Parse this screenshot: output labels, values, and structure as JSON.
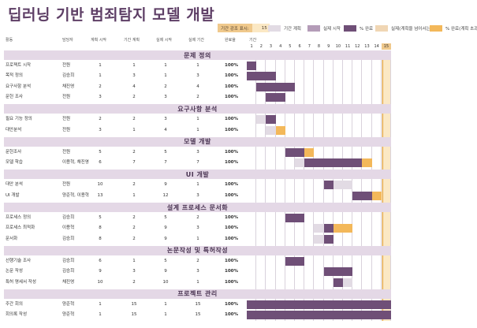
{
  "title": "딥러닝 기반 범죄탐지 모델 개발",
  "period_highlight": {
    "label": "기간 강조 표시:",
    "value": "15"
  },
  "legend": [
    {
      "label": "기간 계획",
      "color": "#e2dbe4",
      "icon": "legend-plan-swatch"
    },
    {
      "label": "실제 시작",
      "color": "#b49cb8",
      "icon": "legend-actual-swatch"
    },
    {
      "label": "% 완료",
      "color": "#6f4f77",
      "icon": "legend-complete-swatch"
    },
    {
      "label": "실제(계획을 넘어서는)",
      "color": "#f0d6b4",
      "icon": "legend-beyond-swatch"
    },
    {
      "label": "% 완료(계획 초과)",
      "color": "#f3b85a",
      "icon": "legend-complete-over-swatch"
    }
  ],
  "headers": {
    "activity": "활동",
    "owner": "담당자",
    "plan_start": "계획 시작",
    "plan_duration": "기간 계획",
    "actual_start": "실제 시작",
    "actual_duration": "실제 기간",
    "percent_complete": "완료율",
    "periods_label": "기간"
  },
  "periods": [
    "1",
    "2",
    "3",
    "4",
    "5",
    "6",
    "7",
    "8",
    "9",
    "10",
    "11",
    "12",
    "13",
    "14",
    "15"
  ],
  "current_period": 15,
  "sections": [
    {
      "title": "문제 정의",
      "tasks": [
        {
          "name": "프로젝트 시작",
          "owner": "전원",
          "ps": "1",
          "pd": "1",
          "as": "1",
          "ad": "1",
          "pct": "100%"
        },
        {
          "name": "목적 정의",
          "owner": "김승희",
          "ps": "1",
          "pd": "3",
          "as": "1",
          "ad": "3",
          "pct": "100%"
        },
        {
          "name": "요구사항 분석",
          "owner": "채진영",
          "ps": "2",
          "pd": "4",
          "as": "2",
          "ad": "4",
          "pct": "100%"
        },
        {
          "name": "문헌 조사",
          "owner": "전원",
          "ps": "3",
          "pd": "2",
          "as": "3",
          "ad": "2",
          "pct": "100%"
        }
      ]
    },
    {
      "title": "요구사항 분석",
      "tasks": [
        {
          "name": "필요 기능 정의",
          "owner": "전원",
          "ps": "2",
          "pd": "2",
          "as": "3",
          "ad": "1",
          "pct": "100%"
        },
        {
          "name": "대안분석",
          "owner": "전원",
          "ps": "3",
          "pd": "1",
          "as": "4",
          "ad": "1",
          "pct": "100%"
        }
      ]
    },
    {
      "title": "모델 개발",
      "tasks": [
        {
          "name": "문헌조사",
          "owner": "전원",
          "ps": "5",
          "pd": "2",
          "as": "5",
          "ad": "3",
          "pct": "100%"
        },
        {
          "name": "모델 학습",
          "owner": "이용혁, 채진영",
          "ps": "6",
          "pd": "7",
          "as": "7",
          "ad": "7",
          "pct": "100%"
        }
      ]
    },
    {
      "title": "UI 개발",
      "tasks": [
        {
          "name": "대안 분석",
          "owner": "전원",
          "ps": "10",
          "pd": "2",
          "as": "9",
          "ad": "1",
          "pct": "100%"
        },
        {
          "name": "UI 개발",
          "owner": "양준혁, 이용혁",
          "ps": "13",
          "pd": "1",
          "as": "12",
          "ad": "3",
          "pct": "100%"
        }
      ]
    },
    {
      "title": "설계 프로세스 문서화",
      "tasks": [
        {
          "name": "프로세스 정의",
          "owner": "김승희",
          "ps": "5",
          "pd": "2",
          "as": "5",
          "ad": "2",
          "pct": "100%"
        },
        {
          "name": "프로세스 최적화",
          "owner": "이용혁",
          "ps": "8",
          "pd": "2",
          "as": "9",
          "ad": "3",
          "pct": "100%"
        },
        {
          "name": "문서화",
          "owner": "김승희",
          "ps": "8",
          "pd": "2",
          "as": "9",
          "ad": "1",
          "pct": "100%"
        }
      ]
    },
    {
      "title": "논문작성 및 특허작성",
      "tasks": [
        {
          "name": "선행기술 조사",
          "owner": "김승희",
          "ps": "6",
          "pd": "1",
          "as": "5",
          "ad": "2",
          "pct": "100%"
        },
        {
          "name": "논문 작성",
          "owner": "김승희",
          "ps": "9",
          "pd": "3",
          "as": "9",
          "ad": "3",
          "pct": "100%"
        },
        {
          "name": "특허 명세서 작성",
          "owner": "채진영",
          "ps": "10",
          "pd": "2",
          "as": "10",
          "ad": "1",
          "pct": "100%"
        }
      ]
    },
    {
      "title": "프로젝트 관리",
      "tasks": [
        {
          "name": "주간 회의",
          "owner": "양준혁",
          "ps": "1",
          "pd": "15",
          "as": "1",
          "ad": "15",
          "pct": "100%"
        },
        {
          "name": "회의록 작성",
          "owner": "양준혁",
          "ps": "1",
          "pd": "15",
          "as": "1",
          "ad": "15",
          "pct": "100%"
        }
      ]
    }
  ]
}
